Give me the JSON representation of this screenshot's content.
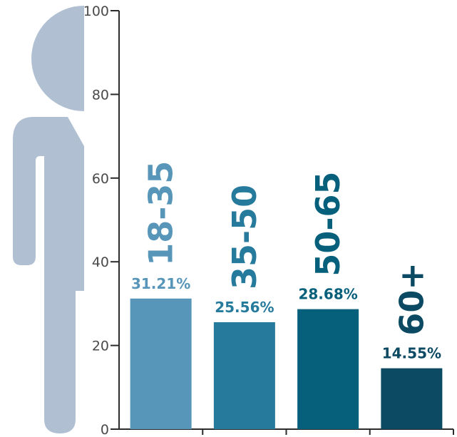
{
  "chart_data": {
    "type": "bar",
    "categories": [
      "18-35",
      "35-50",
      "50-65",
      "60+"
    ],
    "values": [
      31.21,
      25.56,
      28.68,
      14.55
    ],
    "value_labels": [
      "31.21%",
      "25.56%",
      "28.68%",
      "14.55%"
    ],
    "ylim": [
      0,
      100
    ],
    "yticks": [
      0,
      20,
      40,
      60,
      80,
      100
    ],
    "grid": false,
    "colors": [
      "#5795b9",
      "#267a9b",
      "#065f7b",
      "#0b4a62"
    ]
  },
  "colors": {
    "figure": "#b0c0d2",
    "axis": "#2c2c2c",
    "tick_text": "#4a4a4a"
  },
  "icons": [
    "person-silhouette-icon"
  ]
}
